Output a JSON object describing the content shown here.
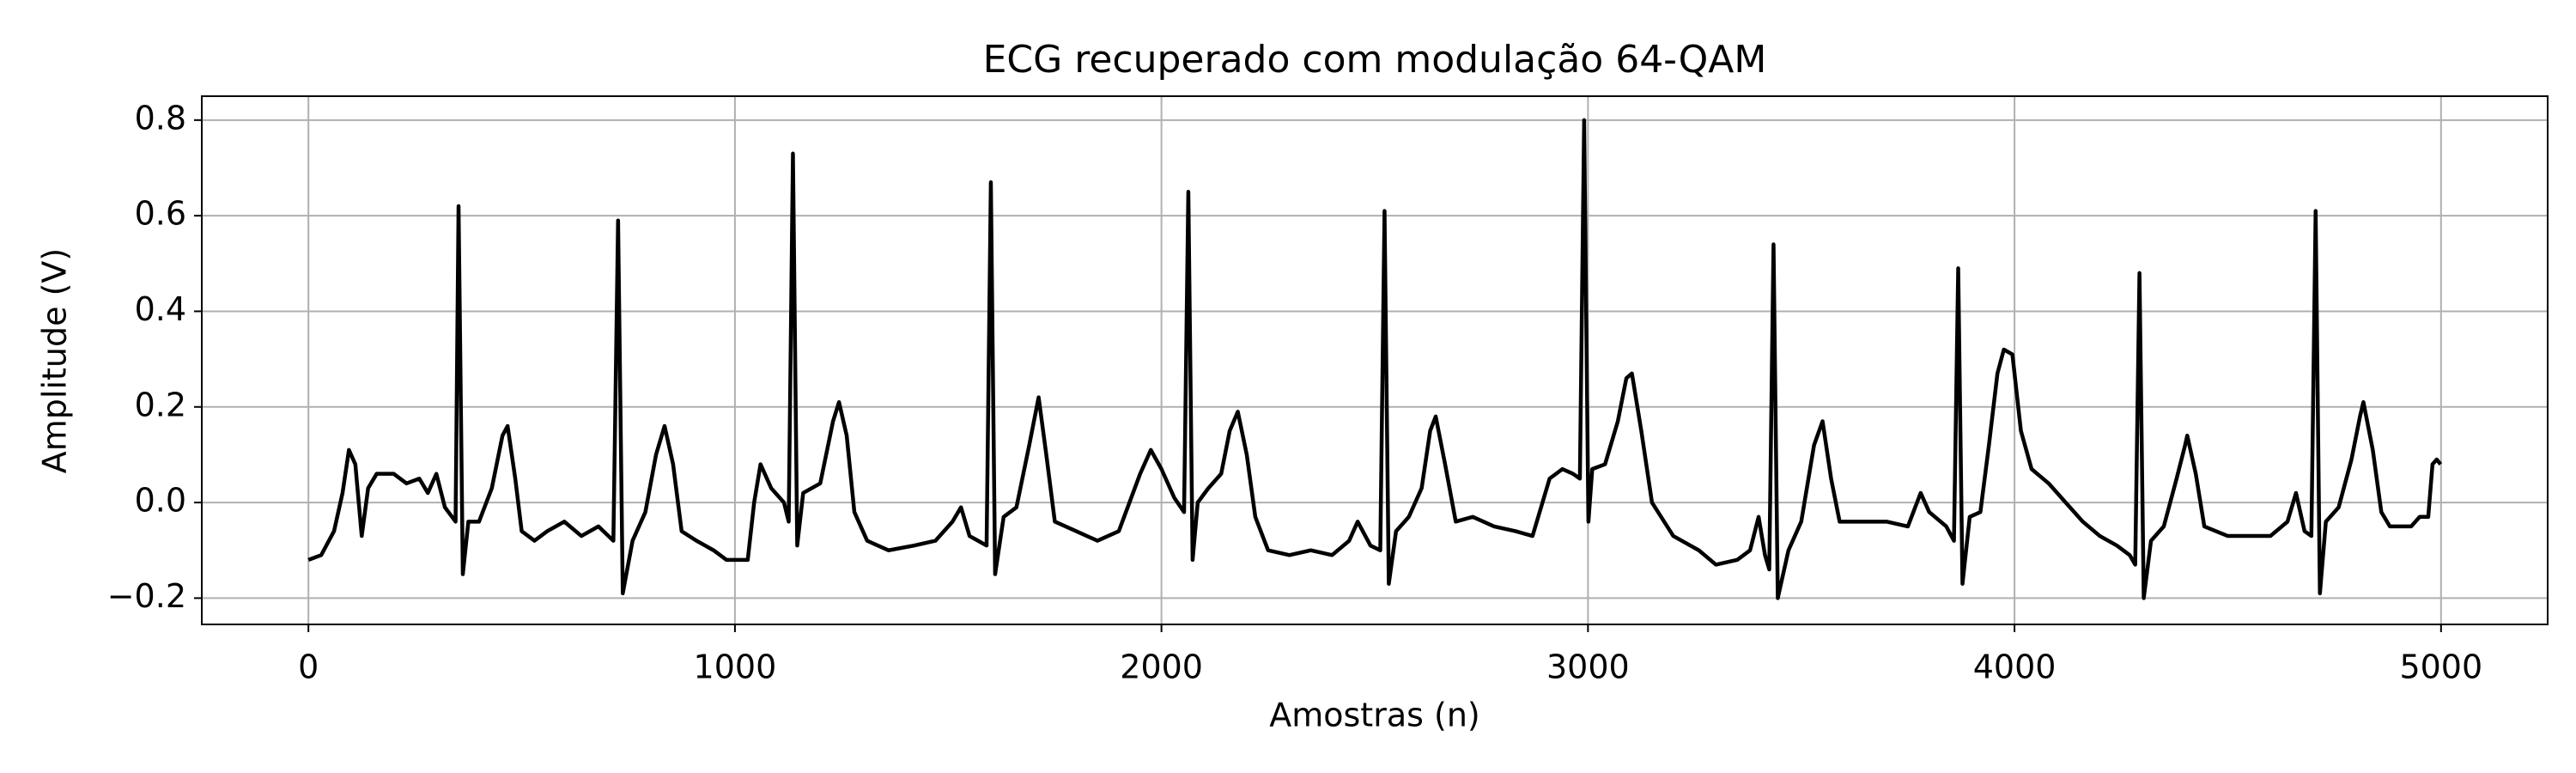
{
  "chart_data": {
    "type": "line",
    "title": "ECG recuperado com modulação 64-QAM",
    "xlabel": "Amostras (n)",
    "ylabel": "Amplitude (V)",
    "color": "#000000",
    "grid": true,
    "xlim": [
      -250,
      5250
    ],
    "ylim": [
      -0.255,
      0.85
    ],
    "xticks": [
      0,
      1000,
      2000,
      3000,
      4000,
      5000
    ],
    "yticks": [
      {
        "value": -0.2,
        "label": "−0.2"
      },
      {
        "value": 0,
        "label": "0.0"
      },
      0.2,
      0.4,
      0.6,
      0.8
    ],
    "x": [
      0,
      30,
      60,
      80,
      95,
      110,
      125,
      140,
      160,
      200,
      230,
      260,
      280,
      300,
      320,
      345,
      352,
      362,
      375,
      400,
      430,
      455,
      467,
      485,
      500,
      530,
      560,
      600,
      640,
      680,
      715,
      726,
      737,
      760,
      790,
      815,
      835,
      855,
      875,
      910,
      950,
      980,
      1030,
      1045,
      1060,
      1085,
      1115,
      1126,
      1136,
      1146,
      1160,
      1200,
      1230,
      1244,
      1262,
      1280,
      1310,
      1360,
      1420,
      1470,
      1510,
      1530,
      1550,
      1590,
      1600,
      1610,
      1630,
      1660,
      1690,
      1712,
      1730,
      1750,
      1800,
      1850,
      1900,
      1950,
      1975,
      2000,
      2030,
      2053,
      2063,
      2073,
      2085,
      2110,
      2140,
      2160,
      2179,
      2200,
      2220,
      2250,
      2300,
      2350,
      2400,
      2440,
      2460,
      2490,
      2513,
      2523,
      2533,
      2550,
      2580,
      2610,
      2630,
      2643,
      2665,
      2690,
      2730,
      2780,
      2830,
      2870,
      2910,
      2940,
      2965,
      2981,
      2991,
      3001,
      3010,
      3040,
      3070,
      3090,
      3103,
      3125,
      3150,
      3200,
      3260,
      3300,
      3350,
      3380,
      3400,
      3415,
      3425,
      3435,
      3445,
      3470,
      3500,
      3530,
      3550,
      3570,
      3590,
      3650,
      3700,
      3750,
      3780,
      3800,
      3840,
      3858,
      3868,
      3878,
      3895,
      3920,
      3940,
      3960,
      3975,
      3995,
      4015,
      4040,
      4080,
      4120,
      4160,
      4200,
      4240,
      4270,
      4283,
      4293,
      4303,
      4320,
      4350,
      4380,
      4400,
      4405,
      4425,
      4445,
      4500,
      4550,
      4600,
      4640,
      4660,
      4680,
      4696,
      4706,
      4716,
      4730,
      4760,
      4790,
      4810,
      4818,
      4840,
      4860,
      4880,
      4930,
      4950,
      4970,
      4980,
      4990,
      4999
    ],
    "values": [
      -0.12,
      -0.11,
      -0.06,
      0.02,
      0.11,
      0.08,
      -0.07,
      0.03,
      0.06,
      0.06,
      0.04,
      0.05,
      0.02,
      0.06,
      -0.01,
      -0.04,
      0.62,
      -0.15,
      -0.04,
      -0.04,
      0.03,
      0.14,
      0.16,
      0.05,
      -0.06,
      -0.08,
      -0.06,
      -0.04,
      -0.07,
      -0.05,
      -0.08,
      0.59,
      -0.19,
      -0.08,
      -0.02,
      0.1,
      0.16,
      0.08,
      -0.06,
      -0.08,
      -0.1,
      -0.12,
      -0.12,
      0.0,
      0.08,
      0.03,
      0.0,
      -0.04,
      0.73,
      -0.09,
      0.02,
      0.04,
      0.17,
      0.21,
      0.14,
      -0.02,
      -0.08,
      -0.1,
      -0.09,
      -0.08,
      -0.04,
      -0.01,
      -0.07,
      -0.09,
      0.67,
      -0.15,
      -0.03,
      -0.01,
      0.12,
      0.22,
      0.1,
      -0.04,
      -0.06,
      -0.08,
      -0.06,
      0.06,
      0.11,
      0.07,
      0.01,
      -0.02,
      0.65,
      -0.12,
      0.0,
      0.03,
      0.06,
      0.15,
      0.19,
      0.1,
      -0.03,
      -0.1,
      -0.11,
      -0.1,
      -0.11,
      -0.08,
      -0.04,
      -0.09,
      -0.1,
      0.61,
      -0.17,
      -0.06,
      -0.03,
      0.03,
      0.15,
      0.18,
      0.08,
      -0.04,
      -0.03,
      -0.05,
      -0.06,
      -0.07,
      0.05,
      0.07,
      0.06,
      0.05,
      0.8,
      -0.04,
      0.07,
      0.08,
      0.17,
      0.26,
      0.27,
      0.15,
      0.0,
      -0.07,
      -0.1,
      -0.13,
      -0.12,
      -0.1,
      -0.03,
      -0.11,
      -0.14,
      0.54,
      -0.2,
      -0.1,
      -0.04,
      0.12,
      0.17,
      0.05,
      -0.04,
      -0.04,
      -0.04,
      -0.05,
      0.02,
      -0.02,
      -0.05,
      -0.08,
      0.49,
      -0.17,
      -0.03,
      -0.02,
      0.12,
      0.27,
      0.32,
      0.31,
      0.15,
      0.07,
      0.04,
      0.0,
      -0.04,
      -0.07,
      -0.09,
      -0.11,
      -0.13,
      0.48,
      -0.2,
      -0.08,
      -0.05,
      0.05,
      0.12,
      0.14,
      0.06,
      -0.05,
      -0.07,
      -0.07,
      -0.07,
      -0.04,
      0.02,
      -0.06,
      -0.07,
      0.61,
      -0.19,
      -0.04,
      -0.01,
      0.09,
      0.18,
      0.21,
      0.11,
      -0.02,
      -0.05,
      -0.05,
      -0.03,
      -0.03,
      0.08,
      0.09,
      0.08
    ]
  }
}
